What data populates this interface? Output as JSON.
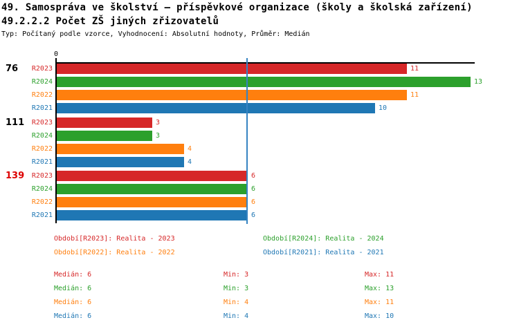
{
  "header": {
    "title": "49. Samospráva ve školství – příspěvkové organizace (školy a školská zařízení)",
    "subtitle": "49.2.2.2 Počet ZŠ jiných zřizovatelů",
    "meta": "Typ: Počítaný podle vzorce, Vyhodnocení: Absolutní hodnoty, Průměr: Medián"
  },
  "colors": {
    "R2023": "#d62728",
    "R2024": "#2ca02c",
    "R2022": "#ff7f0e",
    "R2021": "#1f77b4",
    "axis": "#000000",
    "median_line": "#3583c2",
    "highlight_group": "#dd0000",
    "group_label": "#000000"
  },
  "chart_data": {
    "type": "bar",
    "orientation": "horizontal",
    "title": "49.2.2.2 Počet ZŠ jiných zřizovatelů",
    "x_axis": {
      "ticks": [
        {
          "value": 0,
          "label": "0"
        }
      ],
      "xlim": [
        0,
        13.1
      ],
      "grid": false
    },
    "median_line": {
      "value": 6
    },
    "bar_order": [
      "R2023",
      "R2024",
      "R2022",
      "R2021"
    ],
    "series_colors": {
      "R2023": "#d62728",
      "R2024": "#2ca02c",
      "R2022": "#ff7f0e",
      "R2021": "#1f77b4"
    },
    "groups": [
      {
        "label": "76",
        "label_color": "#000000",
        "values": {
          "R2023": 11,
          "R2024": 13,
          "R2022": 11,
          "R2021": 10
        }
      },
      {
        "label": "111",
        "label_color": "#000000",
        "values": {
          "R2023": 3,
          "R2024": 3,
          "R2022": 4,
          "R2021": 4
        }
      },
      {
        "label": "139",
        "label_color": "#dd0000",
        "values": {
          "R2023": 6,
          "R2024": 6,
          "R2022": 6,
          "R2021": 6
        }
      }
    ]
  },
  "legend": {
    "items": [
      {
        "label": "Období[R2023]: Realita - 2023",
        "color": "#d62728"
      },
      {
        "label": "Období[R2024]: Realita - 2024",
        "color": "#2ca02c"
      },
      {
        "label": "Období[R2022]: Realita - 2022",
        "color": "#ff7f0e"
      },
      {
        "label": "Období[R2021]: Realita - 2021",
        "color": "#1f77b4"
      }
    ]
  },
  "stats": {
    "rows": [
      {
        "median": "Medián: 6",
        "min": "Min: 3",
        "max": "Max: 11",
        "color": "#d62728"
      },
      {
        "median": "Medián: 6",
        "min": "Min: 3",
        "max": "Max: 13",
        "color": "#2ca02c"
      },
      {
        "median": "Medián: 6",
        "min": "Min: 4",
        "max": "Max: 11",
        "color": "#ff7f0e"
      },
      {
        "median": "Medián: 6",
        "min": "Min: 4",
        "max": "Max: 10",
        "color": "#1f77b4"
      }
    ]
  }
}
